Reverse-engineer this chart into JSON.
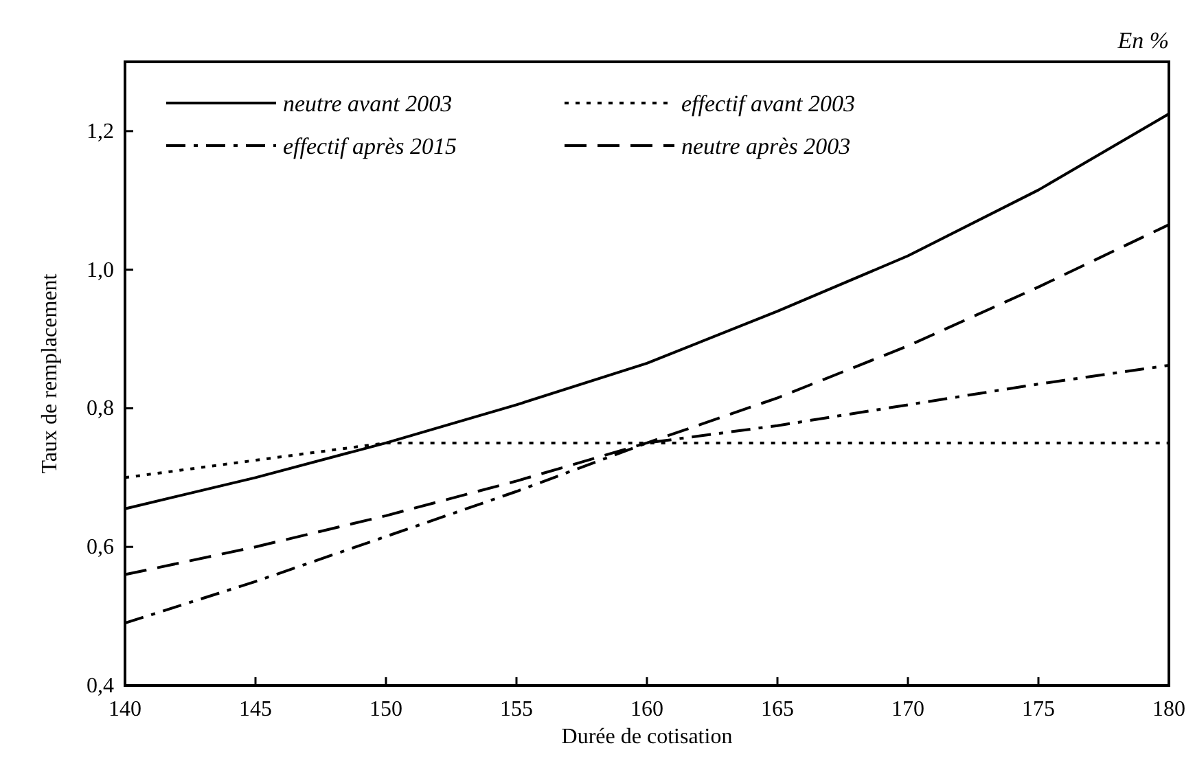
{
  "chart_data": {
    "type": "line",
    "xlabel": "Durée de cotisation",
    "ylabel": "Taux de remplacement",
    "annotations": [
      "En %"
    ],
    "x": [
      140,
      145,
      150,
      155,
      160,
      165,
      170,
      175,
      180
    ],
    "xlim": [
      140,
      180
    ],
    "xticks": [
      140,
      145,
      150,
      155,
      160,
      165,
      170,
      175,
      180
    ],
    "ylim": [
      0.4,
      1.3
    ],
    "yticks": [
      {
        "value": 0.4,
        "label": "0,4"
      },
      {
        "value": 0.6,
        "label": "0,6"
      },
      {
        "value": 0.8,
        "label": "0,8"
      },
      {
        "value": 1.0,
        "label": "1,0"
      },
      {
        "value": 1.2,
        "label": "1,2"
      }
    ],
    "legend": "top left",
    "grid": false,
    "marker": "none",
    "series": [
      {
        "name": "neutre avant 2003",
        "color": "#000000",
        "line_style": "solid",
        "values": [
          0.655,
          0.7,
          0.75,
          0.805,
          0.865,
          0.94,
          1.02,
          1.115,
          1.225
        ]
      },
      {
        "name": "effectif avant 2003",
        "color": "#000000",
        "line_style": "dotted",
        "values": [
          0.7,
          0.725,
          0.75,
          0.75,
          0.75,
          0.75,
          0.75,
          0.75,
          0.75
        ]
      },
      {
        "name": "effectif après 2015",
        "color": "#000000",
        "line_style": "dashdot",
        "values": [
          0.49,
          0.55,
          0.615,
          0.68,
          0.75,
          0.775,
          0.805,
          0.835,
          0.862
        ]
      },
      {
        "name": "neutre après 2003",
        "color": "#000000",
        "line_style": "dashed",
        "values": [
          0.56,
          0.6,
          0.645,
          0.695,
          0.75,
          0.815,
          0.89,
          0.975,
          1.065
        ]
      }
    ]
  }
}
